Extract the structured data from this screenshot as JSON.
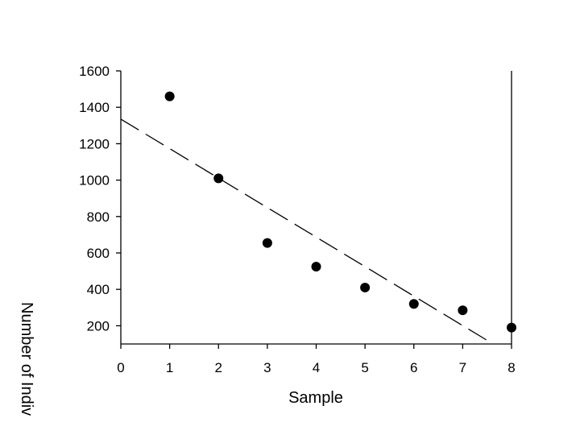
{
  "chart_data": {
    "type": "scatter",
    "xlabel": "Sample",
    "ylabel": "Number of Indiv",
    "xlim": [
      0,
      8
    ],
    "ylim": [
      100,
      1600
    ],
    "x_ticks": [
      0,
      1,
      2,
      3,
      4,
      5,
      6,
      7,
      8
    ],
    "y_ticks": [
      200,
      400,
      600,
      800,
      1000,
      1200,
      1400,
      1600
    ],
    "grid": false,
    "series": [
      {
        "x": [
          1,
          2,
          3,
          4,
          5,
          6,
          7,
          8
        ],
        "y": [
          1460,
          1010,
          655,
          525,
          410,
          320,
          285,
          190
        ]
      }
    ],
    "trendline": {
      "style": "dashed",
      "x": [
        0,
        7.5
      ],
      "y": [
        1335,
        120
      ]
    },
    "colors": {
      "marker": "#000000",
      "axis": "#000000",
      "background": "#ffffff"
    }
  }
}
